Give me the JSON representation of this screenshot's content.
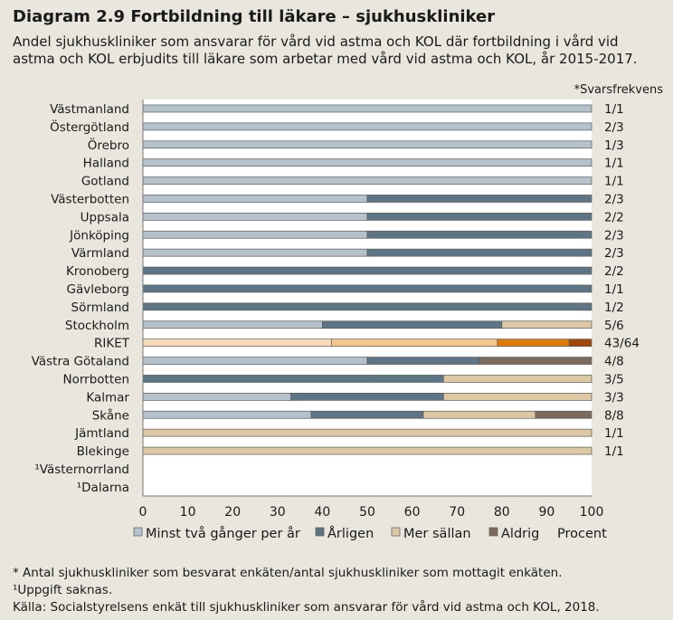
{
  "title": "Diagram 2.9 Fortbildning till läkare – sjukhuskliniker",
  "subtitle": "Andel sjukhuskliniker som ansvarar för vård vid astma och KOL där fortbildning i vård vid astma och KOL erbjudits till läkare som arbetar med vård vid astma och KOL, år 2015-2017.",
  "chart_data": {
    "type": "bar",
    "orientation": "horizontal",
    "stacked": true,
    "xlim": [
      0,
      100
    ],
    "xticks": [
      "0",
      "10",
      "20",
      "30",
      "40",
      "50",
      "60",
      "70",
      "80",
      "90",
      "100"
    ],
    "xlabel": "Procent",
    "response_rate_label": "*Svarsfrekvens",
    "categories": [
      "Västmanland",
      "Östergötland",
      "Örebro",
      "Halland",
      "Gotland",
      "Västerbotten",
      "Uppsala",
      "Jönköping",
      "Värmland",
      "Kronoberg",
      "Gävleborg",
      "Sörmland",
      "Stockholm",
      "RIKET",
      "Västra Götaland",
      "Norrbotten",
      "Kalmar",
      "Skåne",
      "Jämtland",
      "Blekinge",
      "¹Västernorrland",
      "¹Dalarna"
    ],
    "response_rates": [
      "1/1",
      "2/3",
      "1/3",
      "1/1",
      "1/1",
      "2/3",
      "2/2",
      "2/3",
      "2/3",
      "2/2",
      "1/1",
      "1/2",
      "5/6",
      "43/64",
      "4/8",
      "3/5",
      "3/3",
      "8/8",
      "1/1",
      "1/1",
      "",
      ""
    ],
    "series": [
      {
        "name": "Minst två gånger per år",
        "color": "#b4c2cd",
        "values": [
          100,
          100,
          100,
          100,
          100,
          50,
          50,
          50,
          50,
          0,
          0,
          0,
          40,
          42,
          50,
          0,
          33,
          37.5,
          0,
          0,
          null,
          null
        ]
      },
      {
        "name": "Årligen",
        "color": "#5e7585",
        "values": [
          0,
          0,
          0,
          0,
          0,
          50,
          50,
          50,
          50,
          100,
          100,
          100,
          40,
          37,
          25,
          67,
          34,
          25,
          0,
          0,
          null,
          null
        ]
      },
      {
        "name": "Mer sällan",
        "color": "#dcc8a3",
        "values": [
          0,
          0,
          0,
          0,
          0,
          0,
          0,
          0,
          0,
          0,
          0,
          0,
          20,
          16,
          0,
          33,
          33,
          25,
          100,
          100,
          null,
          null
        ]
      },
      {
        "name": "Aldrig",
        "color": "#7c6b5b",
        "values": [
          0,
          0,
          0,
          0,
          0,
          0,
          0,
          0,
          0,
          0,
          0,
          0,
          0,
          5,
          25,
          0,
          0,
          12.5,
          0,
          0,
          null,
          null
        ]
      }
    ],
    "highlight": {
      "category": "RIKET",
      "colors": [
        "#f8dcb9",
        "#f5c687",
        "#df7b05",
        "#a04707"
      ]
    }
  },
  "footnotes": [
    "* Antal sjukhuskliniker som besvarat enkäten/antal sjukhuskliniker som mottagit enkäten.",
    "¹Uppgift saknas.",
    "Källa:  Socialstyrelsens enkät till sjukhuskliniker som ansvarar för vård vid astma och KOL, 2018."
  ]
}
